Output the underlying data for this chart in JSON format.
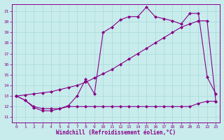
{
  "background_color": "#c8ecec",
  "grid_color": "#a8d8d8",
  "line_color": "#880088",
  "marker": "D",
  "markersize": 2.0,
  "linewidth": 0.8,
  "xlabel": "Windchill (Refroidissement éolien,°C)",
  "xlim": [
    -0.5,
    23.5
  ],
  "ylim": [
    10.5,
    21.7
  ],
  "xticks": [
    0,
    1,
    2,
    3,
    4,
    5,
    6,
    7,
    8,
    9,
    10,
    11,
    12,
    13,
    14,
    15,
    16,
    17,
    18,
    19,
    20,
    21,
    22,
    23
  ],
  "yticks": [
    11,
    12,
    13,
    14,
    15,
    16,
    17,
    18,
    19,
    20,
    21
  ],
  "line1_x": [
    0,
    1,
    2,
    3,
    4,
    5,
    6,
    7,
    8,
    9,
    10,
    11,
    12,
    13,
    14,
    15,
    16,
    17,
    18,
    19,
    20,
    21,
    22,
    23
  ],
  "line1_y": [
    13.0,
    12.6,
    11.9,
    11.6,
    11.6,
    11.8,
    12.1,
    13.0,
    14.6,
    13.2,
    19.0,
    19.5,
    20.2,
    20.5,
    20.5,
    21.4,
    20.5,
    20.3,
    20.1,
    19.8,
    20.8,
    20.8,
    14.8,
    13.2
  ],
  "line2_x": [
    0,
    1,
    2,
    3,
    4,
    5,
    6,
    7,
    8,
    9,
    10,
    11,
    12,
    13,
    14,
    15,
    16,
    17,
    18,
    19,
    20,
    21,
    22,
    23
  ],
  "line2_y": [
    13.0,
    12.6,
    12.0,
    11.8,
    11.8,
    11.8,
    12.0,
    12.0,
    12.0,
    12.0,
    12.0,
    12.0,
    12.0,
    12.0,
    12.0,
    12.0,
    12.0,
    12.0,
    12.0,
    12.0,
    12.0,
    12.3,
    12.5,
    12.5
  ],
  "line3_x": [
    0,
    1,
    2,
    3,
    4,
    5,
    6,
    7,
    8,
    9,
    10,
    11,
    12,
    13,
    14,
    15,
    16,
    17,
    18,
    19,
    20,
    21,
    22,
    23
  ],
  "line3_y": [
    13.0,
    13.1,
    13.2,
    13.3,
    13.4,
    13.6,
    13.8,
    14.0,
    14.3,
    14.7,
    15.1,
    15.5,
    16.0,
    16.5,
    17.0,
    17.5,
    18.0,
    18.5,
    19.0,
    19.5,
    19.8,
    20.1,
    20.1,
    12.5
  ],
  "tick_fontsize": 4.5,
  "xlabel_fontsize": 5.5
}
